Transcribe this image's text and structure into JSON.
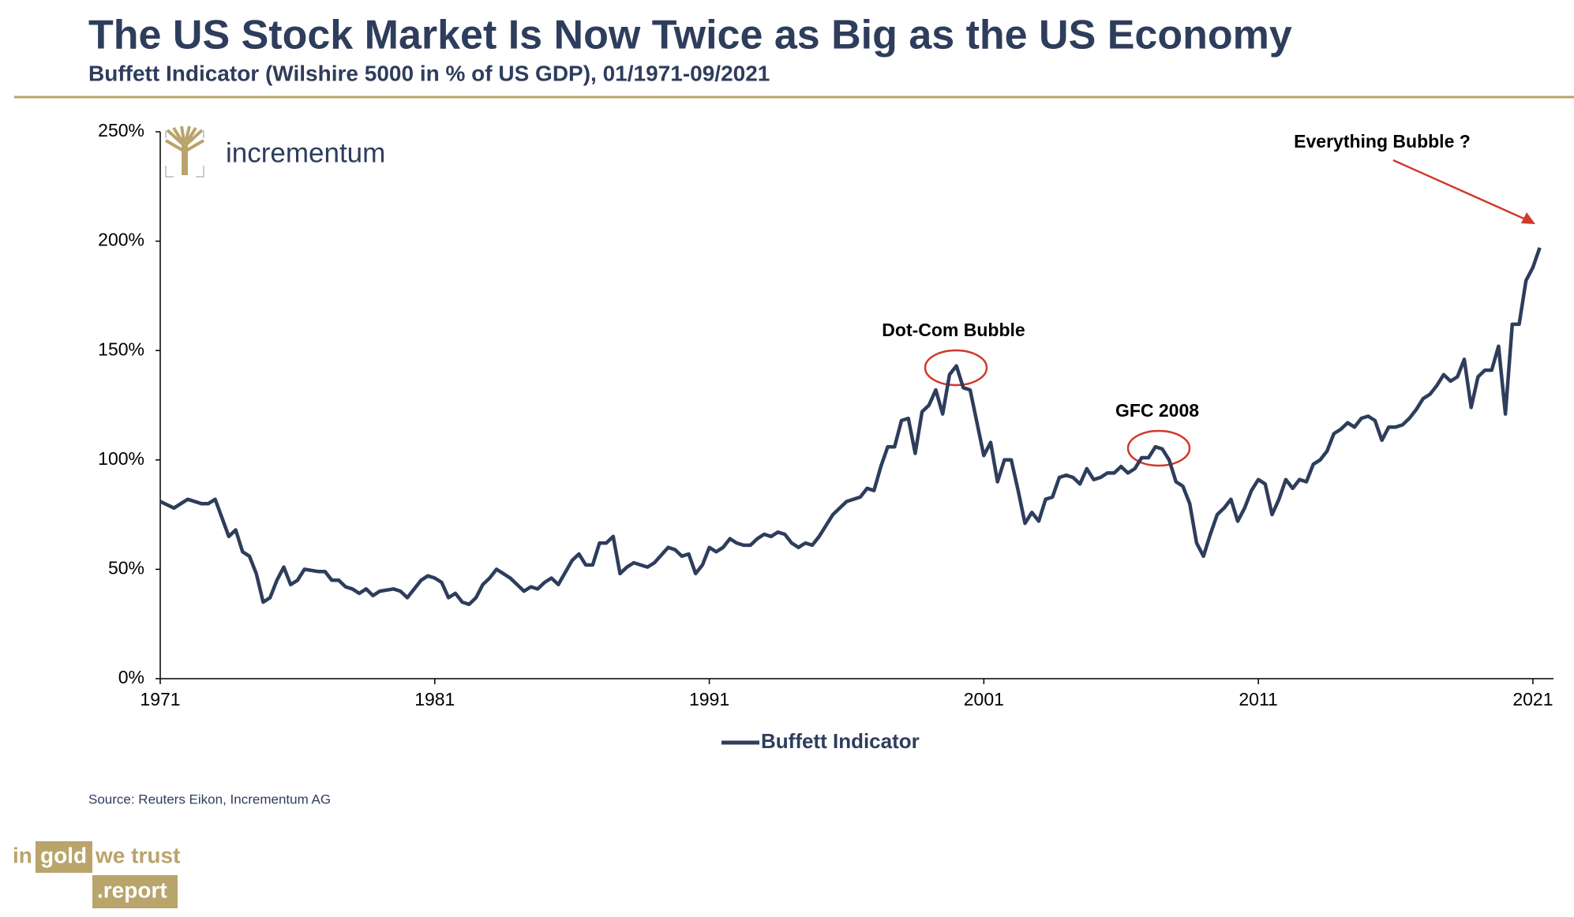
{
  "chart_data": {
    "type": "line",
    "title": "The US Stock Market Is Now Twice as Big as the US Economy",
    "subtitle": "Buffett Indicator (Wilshire 5000 in % of US GDP), 01/1971-09/2021",
    "annotations": [
      "Dot-Com Bubble",
      "GFC 2008",
      "Everything Bubble ?"
    ],
    "source": "Source: Reuters Eikon, Incrementum AG",
    "x": [
      1971,
      1971.5,
      1971.75,
      1972,
      1972.5,
      1972.75,
      1973,
      1973.5,
      1973.75,
      1974,
      1974.25,
      1974.5,
      1974.75,
      1975,
      1975.25,
      1975.5,
      1975.75,
      1976,
      1976.25,
      1976.75,
      1977,
      1977.25,
      1977.5,
      1977.75,
      1978,
      1978.25,
      1978.5,
      1978.75,
      1979,
      1979.5,
      1979.75,
      1980,
      1980.5,
      1980.75,
      1981,
      1981.25,
      1981.5,
      1981.75,
      1982,
      1982.25,
      1982.5,
      1982.75,
      1983,
      1983.25,
      1983.75,
      1984,
      1984.25,
      1984.5,
      1984.75,
      1985,
      1985.25,
      1985.5,
      1986,
      1986.25,
      1986.5,
      1986.75,
      1987,
      1987.25,
      1987.5,
      1987.75,
      1988,
      1988.25,
      1988.75,
      1989,
      1989.5,
      1989.75,
      1990,
      1990.25,
      1990.5,
      1990.75,
      1991,
      1991.25,
      1991.5,
      1991.75,
      1992,
      1992.25,
      1992.5,
      1992.75,
      1993,
      1993.25,
      1993.5,
      1993.75,
      1994,
      1994.25,
      1994.5,
      1994.75,
      1995,
      1995.5,
      1995.75,
      1996,
      1996.5,
      1996.75,
      1997,
      1997.25,
      1997.5,
      1997.75,
      1998,
      1998.25,
      1998.5,
      1998.75,
      1999,
      1999.25,
      1999.5,
      1999.75,
      2000,
      2000.25,
      2000.5,
      2000.75,
      2001,
      2001.25,
      2001.5,
      2001.75,
      2002,
      2002.25,
      2002.5,
      2002.75,
      2003,
      2003.25,
      2003.5,
      2003.75,
      2004,
      2004.25,
      2004.5,
      2004.75,
      2005,
      2005.25,
      2005.5,
      2005.75,
      2006,
      2006.25,
      2006.5,
      2006.75,
      2007,
      2007.25,
      2007.5,
      2007.75,
      2008,
      2008.25,
      2008.5,
      2008.75,
      2009,
      2009.25,
      2009.5,
      2009.75,
      2010,
      2010.25,
      2010.5,
      2010.75,
      2011,
      2011.25,
      2011.5,
      2011.75,
      2012,
      2012.25,
      2012.5,
      2012.75,
      2013,
      2013.25,
      2013.5,
      2013.75,
      2014,
      2014.25,
      2014.5,
      2014.75,
      2015,
      2015.25,
      2015.5,
      2015.75,
      2016,
      2016.25,
      2016.5,
      2016.75,
      2017,
      2017.25,
      2017.5,
      2017.75,
      2018,
      2018.25,
      2018.5,
      2018.75,
      2019,
      2019.25,
      2019.5,
      2019.75,
      2020,
      2020.25,
      2020.5,
      2020.75,
      2021,
      2021.25
    ],
    "series": [
      {
        "name": "Buffett Indicator",
        "color": "#2e3d5c",
        "values": [
          81,
          78,
          80,
          82,
          80,
          80,
          82,
          65,
          68,
          58,
          56,
          48,
          35,
          37,
          45,
          51,
          43,
          45,
          50,
          49,
          49,
          45,
          45,
          42,
          41,
          39,
          41,
          38,
          40,
          41,
          40,
          37,
          45,
          47,
          46,
          44,
          37,
          39,
          35,
          34,
          37,
          43,
          46,
          50,
          46,
          43,
          40,
          42,
          41,
          44,
          46,
          43,
          54,
          57,
          52,
          52,
          62,
          62,
          65,
          48,
          51,
          53,
          51,
          53,
          60,
          59,
          56,
          57,
          48,
          52,
          60,
          58,
          60,
          64,
          62,
          61,
          61,
          64,
          66,
          65,
          67,
          66,
          62,
          60,
          62,
          61,
          65,
          75,
          78,
          81,
          83,
          87,
          86,
          97,
          106,
          106,
          118,
          119,
          103,
          122,
          125,
          132,
          121,
          139,
          143,
          133,
          132,
          117,
          102,
          108,
          90,
          100,
          100,
          86,
          71,
          76,
          72,
          82,
          83,
          92,
          93,
          92,
          89,
          96,
          91,
          92,
          94,
          94,
          97,
          94,
          96,
          101,
          101,
          106,
          105,
          100,
          90,
          88,
          80,
          62,
          56,
          66,
          75,
          78,
          82,
          72,
          78,
          86,
          91,
          89,
          75,
          82,
          91,
          87,
          91,
          90,
          98,
          100,
          104,
          112,
          114,
          117,
          115,
          119,
          120,
          118,
          109,
          115,
          115,
          116,
          119,
          123,
          128,
          130,
          134,
          139,
          136,
          138,
          146,
          124,
          138,
          141,
          141,
          152,
          121,
          162,
          162,
          182,
          188,
          197
        ]
      }
    ],
    "xlim": [
      1971,
      2021.75
    ],
    "xticks": [
      1971,
      1981,
      1991,
      2001,
      2011,
      2021
    ],
    "ylim": [
      0,
      250
    ],
    "yticks": [
      {
        "value": 0,
        "label": "0%"
      },
      {
        "value": 50,
        "label": "50%"
      },
      {
        "value": 100,
        "label": "100%"
      },
      {
        "value": 150,
        "label": "150%"
      },
      {
        "value": 200,
        "label": "200%"
      },
      {
        "value": 250,
        "label": "250%"
      }
    ],
    "legend": "bottom"
  },
  "branding": {
    "logo": "incrementum",
    "footer": [
      "in",
      "gold",
      "we trust",
      ".report"
    ]
  }
}
